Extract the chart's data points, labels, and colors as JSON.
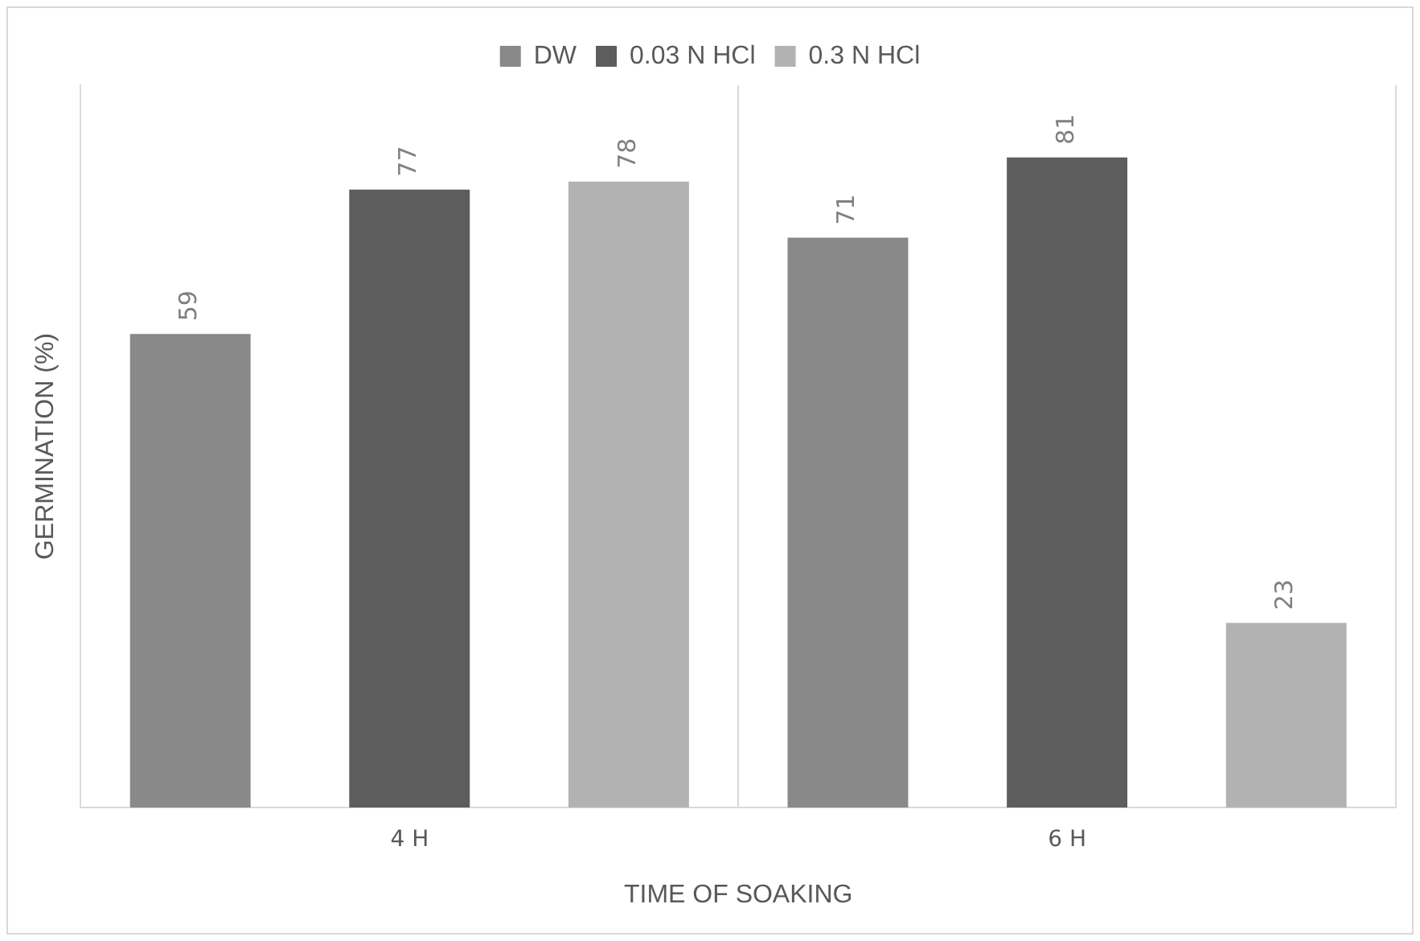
{
  "chart_data": {
    "type": "bar",
    "xlabel": "TIME OF SOAKING",
    "ylabel": "GERMINATION (%)",
    "categories": [
      "4 H",
      "6 H"
    ],
    "series": [
      {
        "name": "DW",
        "color": "#898989",
        "values": [
          59,
          71
        ]
      },
      {
        "name": "0.03 N HCl",
        "color": "#5d5d5d",
        "values": [
          77,
          81
        ]
      },
      {
        "name": "0.3 N HCl",
        "color": "#b2b2b2",
        "values": [
          78,
          23
        ]
      }
    ],
    "data_labels": true,
    "legend": "top",
    "grid": "x",
    "tick_labels": "x"
  }
}
